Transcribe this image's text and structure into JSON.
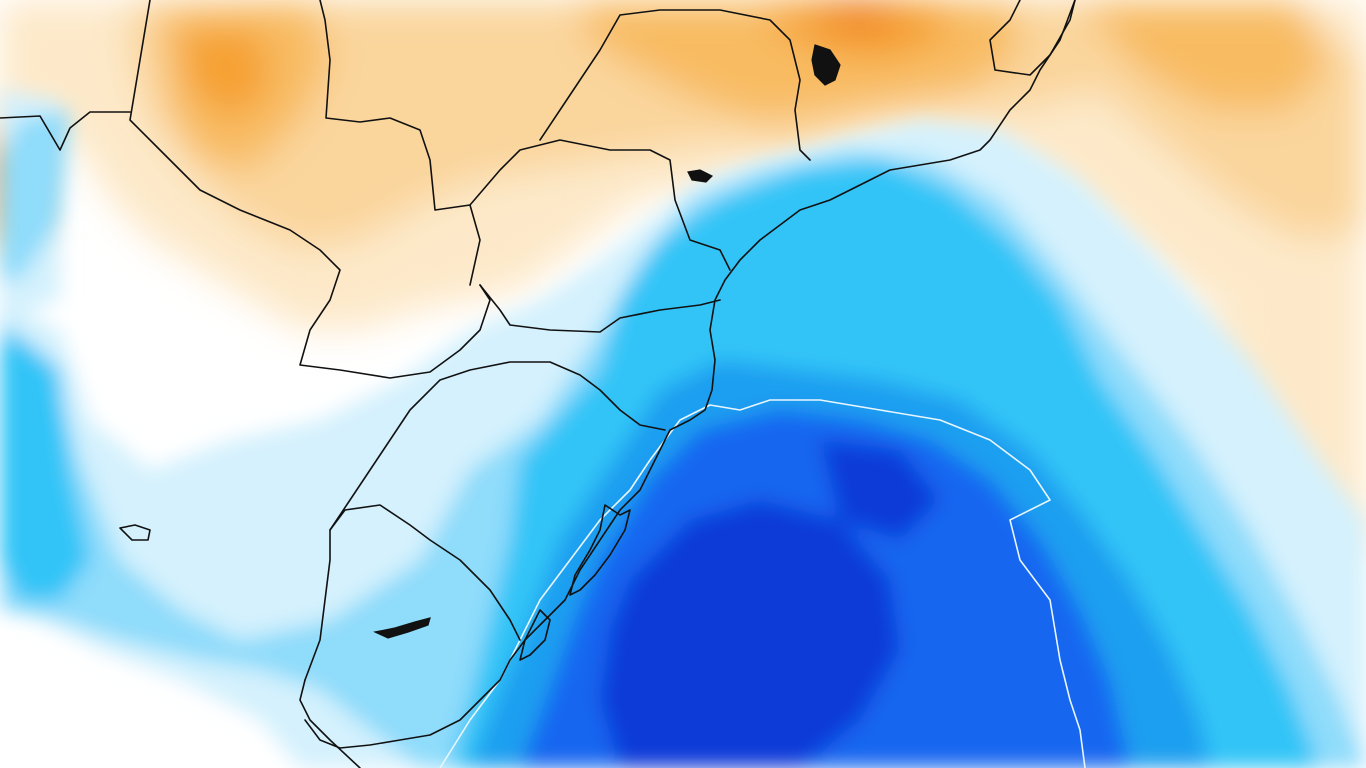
{
  "map": {
    "type": "temperature-anomaly-field",
    "palette": {
      "dark-blue": "#0a3ad8",
      "blue": "#1466f0",
      "mid-blue": "#1a9ff0",
      "light-blue": "#33c4f7",
      "pale-blue": "#8fdcfb",
      "very-pale-blue": "#d4f1fd",
      "white": "#ffffff",
      "pale-orange": "#fde9c9",
      "light-orange": "#fad59c",
      "orange": "#f8bb62",
      "deep-orange": "#f6a030",
      "dark-orange": "#ee7a12"
    },
    "overlays": {
      "boundaries": "country-and-state-borders",
      "contour": "zero-anomaly-line"
    }
  }
}
